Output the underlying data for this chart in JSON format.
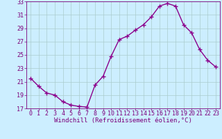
{
  "x": [
    0,
    1,
    2,
    3,
    4,
    5,
    6,
    7,
    8,
    9,
    10,
    11,
    12,
    13,
    14,
    15,
    16,
    17,
    18,
    19,
    20,
    21,
    22,
    23
  ],
  "y": [
    21.5,
    20.3,
    19.3,
    19.0,
    18.0,
    17.5,
    17.3,
    17.2,
    20.5,
    21.8,
    24.8,
    27.3,
    27.8,
    28.7,
    29.5,
    30.7,
    32.3,
    32.7,
    32.3,
    29.5,
    28.3,
    25.8,
    24.2,
    23.2
  ],
  "line_color": "#8b008b",
  "marker": "+",
  "marker_size": 4,
  "line_width": 1.0,
  "bg_color": "#cceeff",
  "grid_color": "#aacccc",
  "xlabel": "Windchill (Refroidissement éolien,°C)",
  "xlim": [
    -0.5,
    23.5
  ],
  "ylim": [
    17,
    33
  ],
  "yticks": [
    17,
    19,
    21,
    23,
    25,
    27,
    29,
    31,
    33
  ],
  "xticks": [
    0,
    1,
    2,
    3,
    4,
    5,
    6,
    7,
    8,
    9,
    10,
    11,
    12,
    13,
    14,
    15,
    16,
    17,
    18,
    19,
    20,
    21,
    22,
    23
  ],
  "xlabel_fontsize": 6.5,
  "tick_fontsize": 6.0,
  "tick_color": "#7b007b",
  "label_color": "#7b007b",
  "markeredgewidth": 1.0
}
